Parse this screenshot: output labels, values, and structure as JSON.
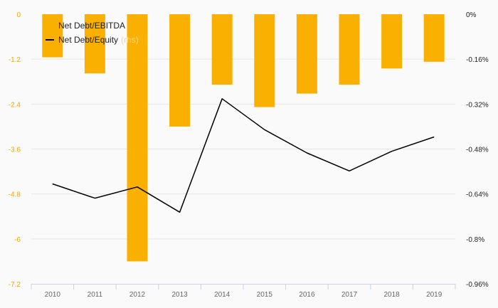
{
  "chart_data": {
    "type": "bar",
    "categories": [
      "2010",
      "2011",
      "2012",
      "2013",
      "2014",
      "2015",
      "2016",
      "2017",
      "2018",
      "2019"
    ],
    "series": [
      {
        "name": "Net Debt/EBITDA",
        "type": "bar",
        "axis": "left",
        "color": "#f9b000",
        "values": [
          -1.15,
          -1.58,
          -6.6,
          -3.0,
          -1.88,
          -2.48,
          -2.12,
          -1.88,
          -1.45,
          -1.27
        ]
      },
      {
        "name": "Net Debt/Equity",
        "type": "line",
        "axis": "right",
        "axis_label": "(rhs)",
        "color": "#000000",
        "values": [
          -0.604,
          -0.655,
          -0.615,
          -0.705,
          -0.301,
          -0.411,
          -0.494,
          -0.558,
          -0.488,
          -0.437
        ]
      }
    ],
    "left_axis": {
      "ylim": [
        -7.2,
        0
      ],
      "ticks": [
        0,
        -1.2,
        -2.4,
        -3.6,
        -4.8,
        -6,
        -7.2
      ],
      "tick_labels": [
        "0",
        "-1.2",
        "-2.4",
        "-3.6",
        "-4.8",
        "-6",
        "-7.2"
      ]
    },
    "right_axis": {
      "ylim": [
        -0.96,
        0
      ],
      "ticks": [
        0,
        -0.16,
        -0.32,
        -0.48,
        -0.64,
        -0.8,
        -0.96
      ],
      "tick_labels": [
        "0%",
        "-0.16%",
        "-0.32%",
        "-0.48%",
        "-0.64%",
        "-0.8%",
        "-0.96%"
      ]
    },
    "legend": {
      "position": "top-left"
    },
    "grid": true
  }
}
